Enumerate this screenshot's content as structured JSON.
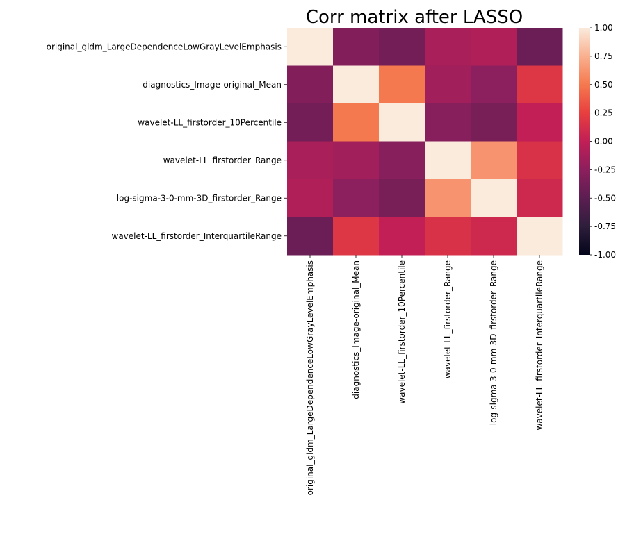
{
  "chart_data": {
    "type": "heatmap",
    "title": "Corr matrix after LASSO",
    "xlabel": "",
    "ylabel": "",
    "labels": [
      "original_gldm_LargeDependenceLowGrayLevelEmphasis",
      "diagnostics_Image-original_Mean",
      "wavelet-LL_firstorder_10Percentile",
      "wavelet-LL_firstorder_Range",
      "log-sigma-3-0-mm-3D_firstorder_Range",
      "wavelet-LL_firstorder_InterquartileRange"
    ],
    "matrix": [
      [
        1.0,
        -0.3,
        -0.38,
        -0.12,
        -0.08,
        -0.42
      ],
      [
        -0.3,
        1.0,
        0.5,
        -0.15,
        -0.25,
        0.18
      ],
      [
        -0.38,
        0.5,
        1.0,
        -0.28,
        -0.35,
        0.0
      ],
      [
        -0.12,
        -0.15,
        -0.28,
        1.0,
        0.62,
        0.15
      ],
      [
        -0.08,
        -0.25,
        -0.35,
        0.62,
        1.0,
        0.08
      ],
      [
        -0.42,
        0.18,
        0.0,
        0.15,
        0.08,
        1.0
      ]
    ],
    "colorbar": {
      "vmin": -1.0,
      "vmax": 1.0,
      "ticks": [
        "-1.00",
        "-0.75",
        "-0.50",
        "-0.25",
        "0.00",
        "0.25",
        "0.50",
        "0.75",
        "1.00"
      ]
    },
    "colormap": [
      "#03051a",
      "#2e1e3c",
      "#5c1e51",
      "#8c1f5d",
      "#c11f56",
      "#e83f3f",
      "#f5794f",
      "#f9b08f",
      "#faebdd"
    ],
    "grid": false
  }
}
